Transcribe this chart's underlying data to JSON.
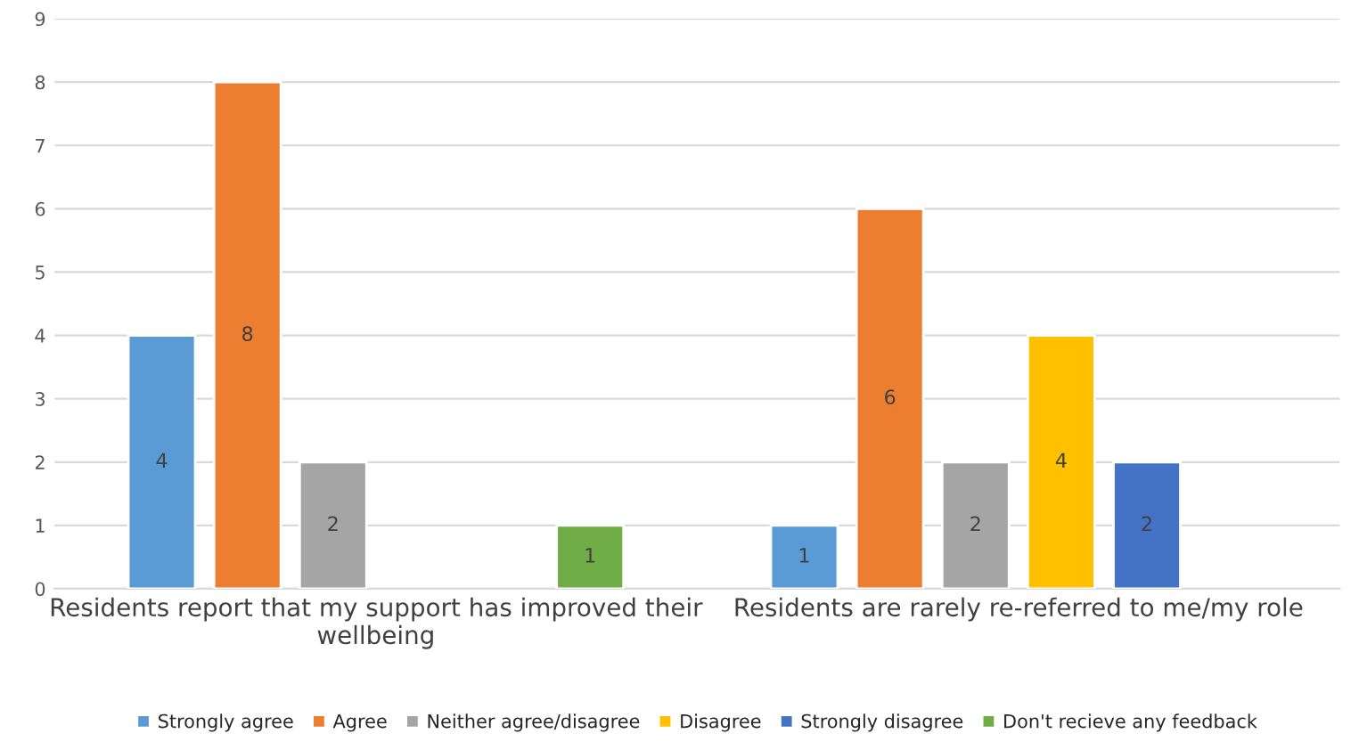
{
  "chart_data": {
    "type": "bar",
    "categories": [
      "Residents report that my support has improved their wellbeing",
      "Residents are rarely re-referred to me/my role"
    ],
    "series": [
      {
        "name": "Strongly agree",
        "color": "#5b9bd5",
        "values": [
          4,
          1
        ]
      },
      {
        "name": "Agree",
        "color": "#ed7d31",
        "values": [
          8,
          6
        ]
      },
      {
        "name": "Neither agree/disagree",
        "color": "#a5a5a5",
        "values": [
          2,
          2
        ]
      },
      {
        "name": "Disagree",
        "color": "#ffc000",
        "values": [
          null,
          4
        ]
      },
      {
        "name": "Strongly disagree",
        "color": "#4472c4",
        "values": [
          null,
          2
        ]
      },
      {
        "name": "Don't recieve any feedback",
        "color": "#70ad47",
        "values": [
          1,
          null
        ]
      }
    ],
    "ylim": [
      0,
      9
    ],
    "yticks": [
      0,
      1,
      2,
      3,
      4,
      5,
      6,
      7,
      8,
      9
    ],
    "grid": "y",
    "legend": "bottom",
    "data_labels": true
  }
}
